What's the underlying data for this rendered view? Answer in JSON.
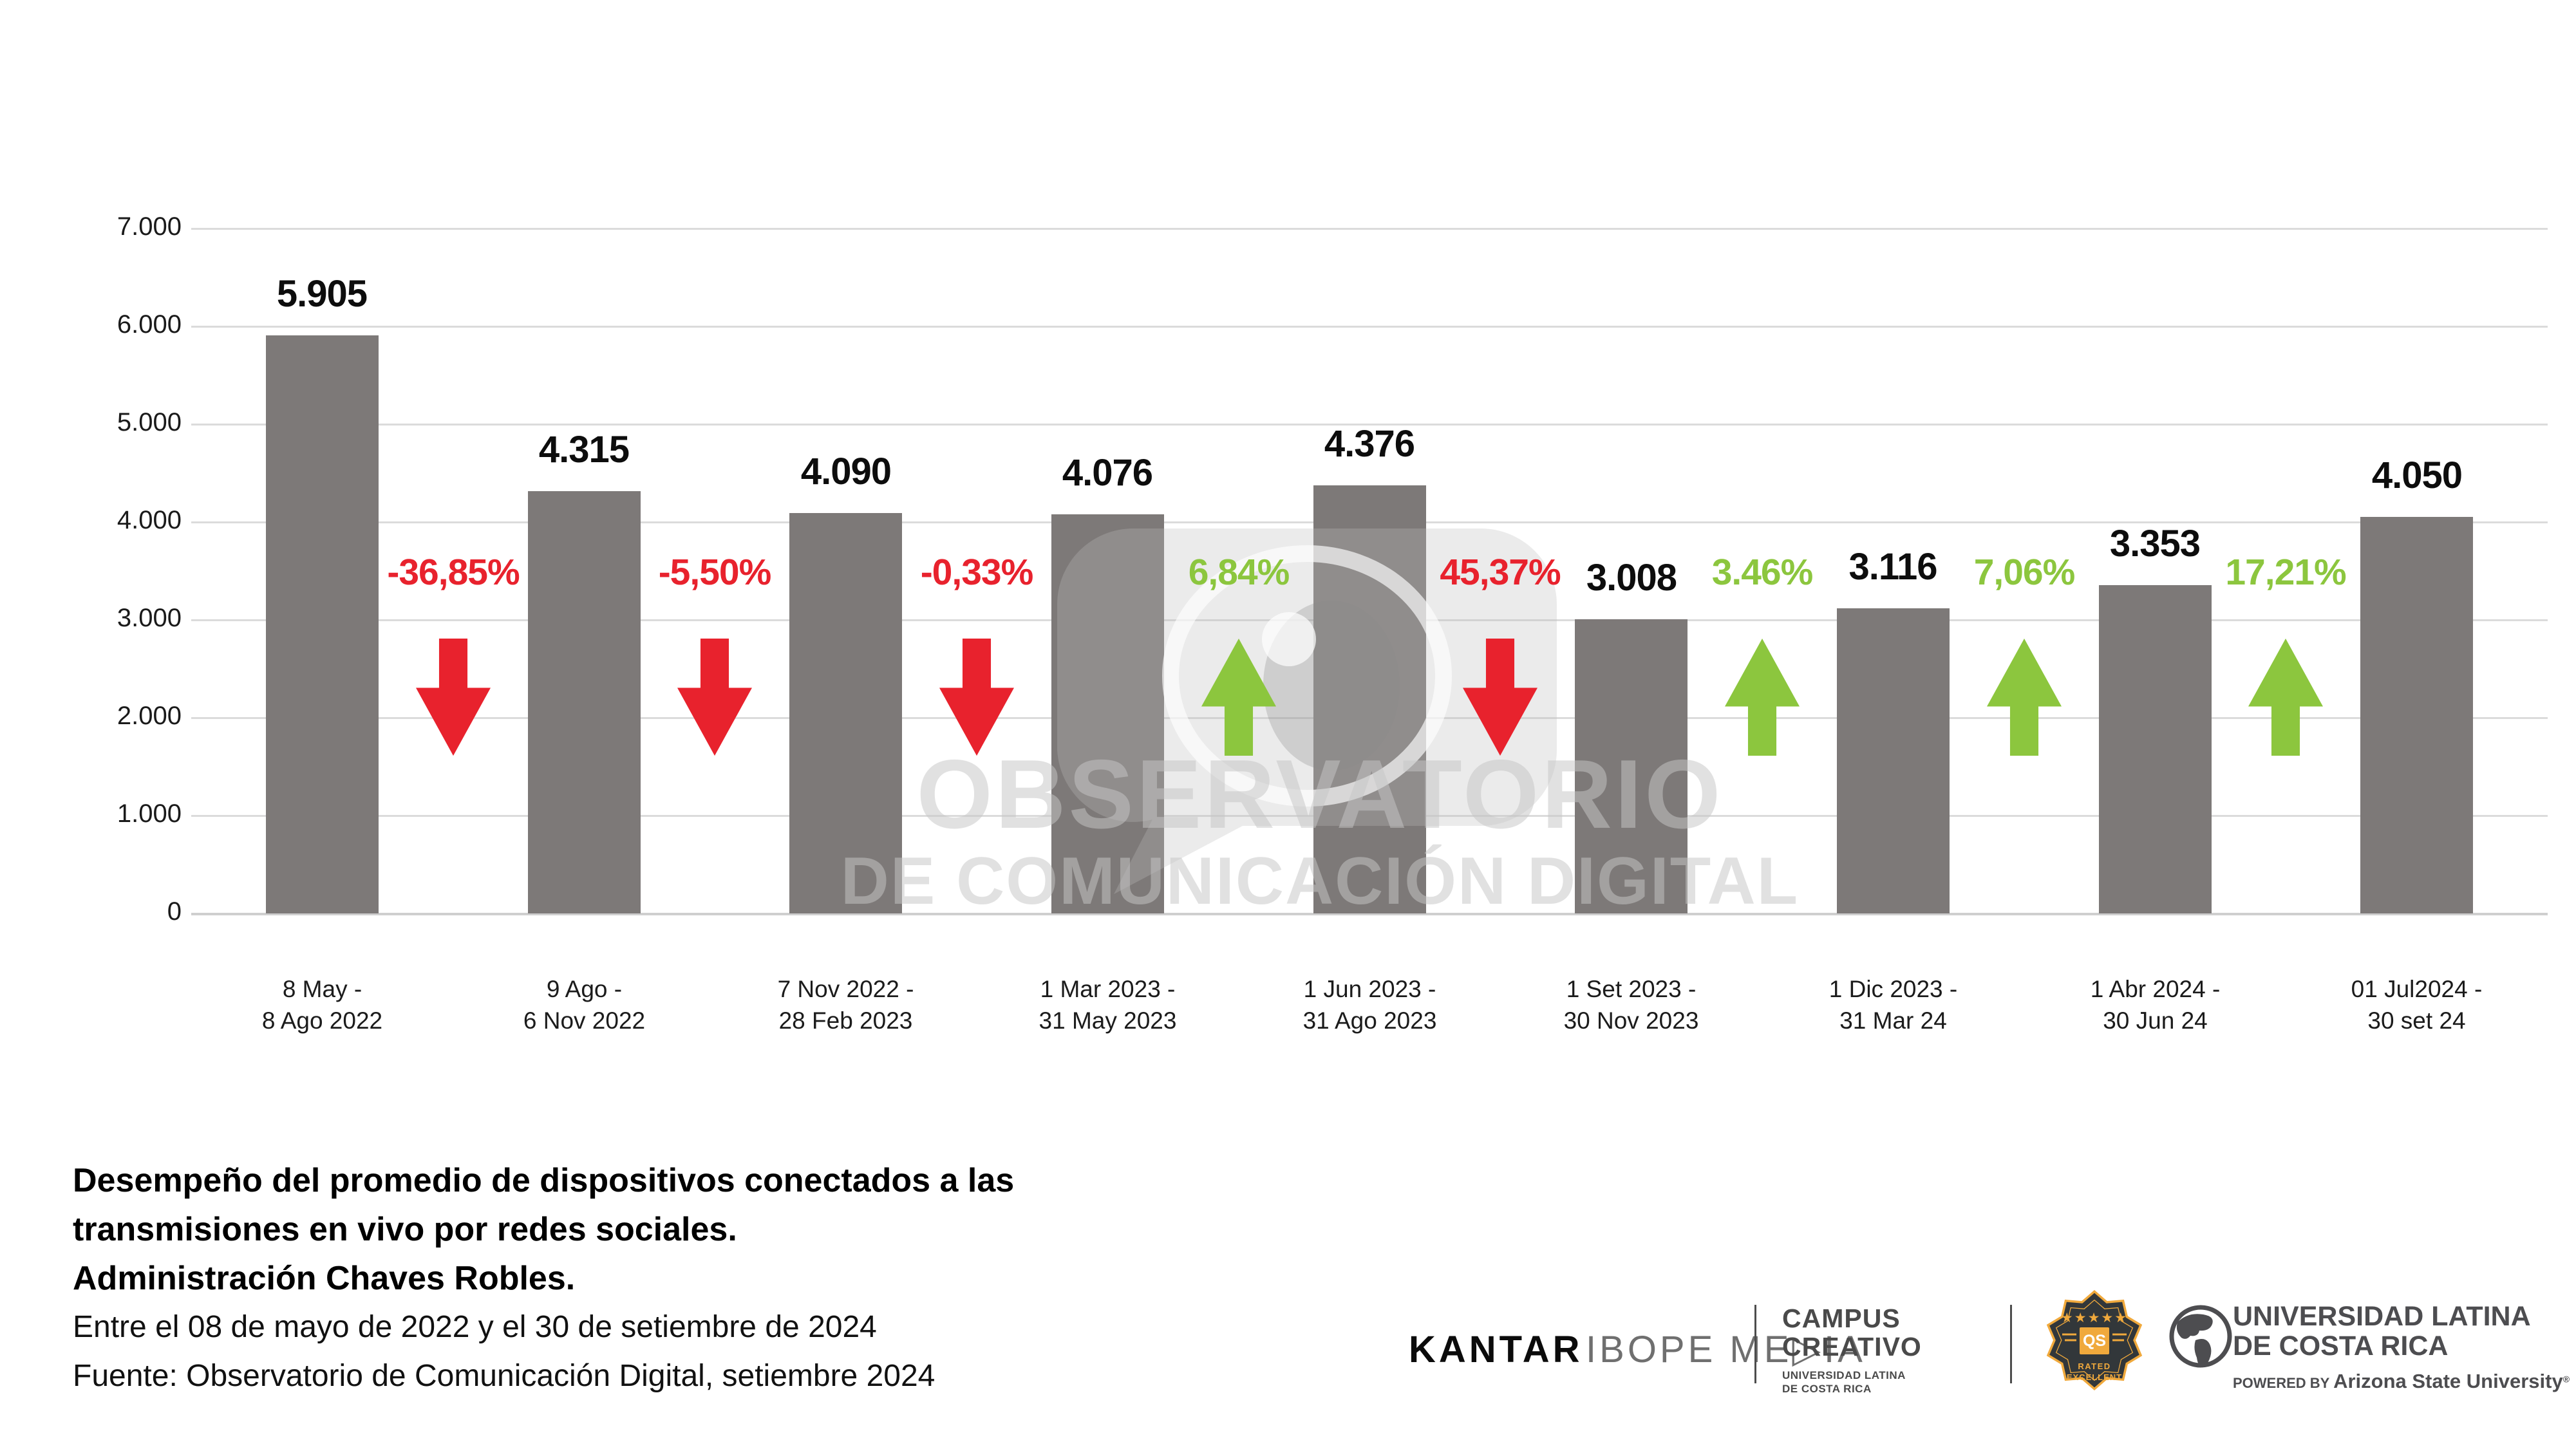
{
  "chart_data": {
    "type": "bar",
    "title": "Desempeño del promedio de dispositivos conectados a las transmisiones en vivo por redes sociales. Administración Chaves Robles.",
    "xlabel": "",
    "ylabel": "",
    "ylim": [
      0,
      7000
    ],
    "grid": true,
    "legend": "none",
    "yticks": [
      {
        "value": 7000,
        "label": "7.000"
      },
      {
        "value": 6000,
        "label": "6.000"
      },
      {
        "value": 5000,
        "label": "5.000"
      },
      {
        "value": 4000,
        "label": "4.000"
      },
      {
        "value": 3000,
        "label": "3.000"
      },
      {
        "value": 2000,
        "label": "2.000"
      },
      {
        "value": 1000,
        "label": "1.000"
      },
      {
        "value": 0,
        "label": "0"
      }
    ],
    "bars": [
      {
        "value": 5905,
        "label": "5.905",
        "category": [
          "8 May -",
          "8 Ago 2022"
        ]
      },
      {
        "value": 4315,
        "label": "4.315",
        "category": [
          "9 Ago -",
          "6 Nov 2022"
        ]
      },
      {
        "value": 4090,
        "label": "4.090",
        "category": [
          "7 Nov 2022 -",
          "28 Feb 2023"
        ]
      },
      {
        "value": 4076,
        "label": "4.076",
        "category": [
          "1 Mar 2023 -",
          "31 May 2023"
        ]
      },
      {
        "value": 4376,
        "label": "4.376",
        "category": [
          "1 Jun 2023 -",
          "31 Ago 2023"
        ]
      },
      {
        "value": 3008,
        "label": "3.008",
        "category": [
          "1 Set 2023 -",
          "30 Nov 2023"
        ]
      },
      {
        "value": 3116,
        "label": "3.116",
        "category": [
          "1 Dic 2023 -",
          "31 Mar 24"
        ]
      },
      {
        "value": 3353,
        "label": "3.353",
        "category": [
          "1 Abr 2024 -",
          "30 Jun 24"
        ]
      },
      {
        "value": 4050,
        "label": "4.050",
        "category": [
          "01 Jul2024 -",
          "30 set 24"
        ]
      }
    ],
    "changes": [
      {
        "label": "-36,85%",
        "direction": "down"
      },
      {
        "label": "-5,50%",
        "direction": "down"
      },
      {
        "label": "-0,33%",
        "direction": "down"
      },
      {
        "label": "6,84%",
        "direction": "up"
      },
      {
        "label": "45,37%",
        "direction": "down"
      },
      {
        "label": "3.46%",
        "direction": "up"
      },
      {
        "label": "7,06%",
        "direction": "up"
      },
      {
        "label": "17,21%",
        "direction": "up"
      }
    ],
    "colors": {
      "bar": "#7D7978",
      "increase": "#8CC63E",
      "decrease": "#E8222D",
      "gridline": "#DBDBDB"
    }
  },
  "watermark": {
    "line1": "OBSERVATORIO",
    "line2": "DE COMUNICACIÓN DIGITAL"
  },
  "footer": {
    "title_line1": "Desempeño del promedio de dispositivos conectados a las",
    "title_line2": "transmisiones en vivo por redes sociales.",
    "title_line3": "Administración Chaves Robles.",
    "subtitle": "Entre el 08 de mayo de 2022 y el 30 de setiembre de 2024",
    "source": "Fuente: Observatorio de Comunicación Digital, setiembre 2024"
  },
  "logos": {
    "kantar": "KANTAR",
    "ibope": "IBOPE ME▷IA",
    "campus_line1": "CAMPUS",
    "campus_line2": "CREATIVO",
    "campus_sub1": "UNIVERSIDAD LATINA",
    "campus_sub2": "DE COSTA RICA",
    "badge_stars": "★★★★★",
    "badge_qs": "QS",
    "badge_rated": "RATED",
    "badge_excellent": "EXCELLENT",
    "univ_line1": "UNIVERSIDAD LATINA",
    "univ_line2": "DE COSTA RICA",
    "powered_by": "POWERED BY",
    "asu": "Arizona State University",
    "registered": "®"
  }
}
